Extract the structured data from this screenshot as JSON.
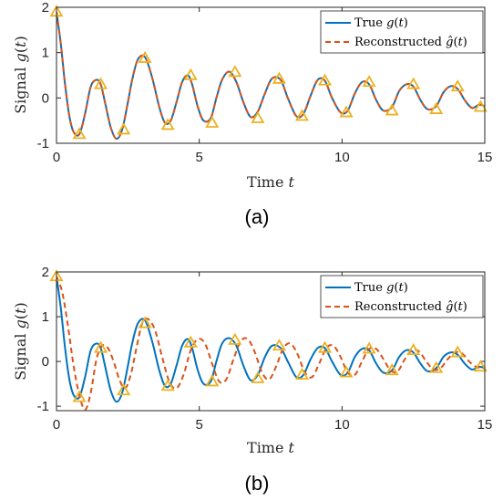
{
  "chart_data": [
    {
      "type": "line",
      "caption": "(a)",
      "xlabel": "Time t",
      "ylabel": "Signal g(t)",
      "xlim": [
        0,
        15
      ],
      "ylim": [
        -1,
        2
      ],
      "xticks": [
        "0",
        "5",
        "10",
        "15"
      ],
      "yticks": [
        "-1",
        "0",
        "1",
        "2"
      ],
      "legend_position": "top-right",
      "series": [
        {
          "name": "True g(t)",
          "color": "#0072BD",
          "style": "solid",
          "x": [
            0,
            0.15,
            0.3,
            0.45,
            0.6,
            0.8,
            1.0,
            1.2,
            1.4,
            1.55,
            1.7,
            1.9,
            2.1,
            2.3,
            2.5,
            2.65,
            2.85,
            3.1,
            3.35,
            3.6,
            3.8,
            4.0,
            4.2,
            4.4,
            4.6,
            4.75,
            4.95,
            5.15,
            5.4,
            5.6,
            5.8,
            6.05,
            6.3,
            6.55,
            6.8,
            7.05,
            7.3,
            7.55,
            7.85,
            8.1,
            8.4,
            8.65,
            8.9,
            9.15,
            9.4,
            9.65,
            9.95,
            10.2,
            10.45,
            10.7,
            10.95,
            11.2,
            11.45,
            11.75,
            12.0,
            12.25,
            12.5,
            12.75,
            13.0,
            13.3,
            13.55,
            13.8,
            14.05,
            14.3,
            14.55,
            14.8,
            15.0
          ],
          "values": [
            1.9,
            1.2,
            0.3,
            -0.4,
            -0.75,
            -0.8,
            -0.35,
            0.25,
            0.4,
            0.3,
            -0.1,
            -0.65,
            -0.9,
            -0.7,
            -0.1,
            0.4,
            0.85,
            0.9,
            0.45,
            -0.2,
            -0.55,
            -0.5,
            -0.1,
            0.35,
            0.5,
            0.3,
            -0.2,
            -0.5,
            -0.45,
            0.0,
            0.4,
            0.58,
            0.35,
            -0.1,
            -0.42,
            -0.3,
            0.1,
            0.43,
            0.4,
            0.0,
            -0.4,
            -0.35,
            0.05,
            0.4,
            0.38,
            0.0,
            -0.32,
            -0.28,
            0.1,
            0.35,
            0.3,
            -0.05,
            -0.28,
            -0.2,
            0.15,
            0.3,
            0.25,
            -0.05,
            -0.25,
            -0.18,
            0.12,
            0.26,
            0.2,
            -0.05,
            -0.22,
            -0.15,
            -0.18
          ]
        },
        {
          "name": "Reconstructed ĝ(t)",
          "color": "#D95319",
          "style": "dashed",
          "x": [
            0,
            0.15,
            0.3,
            0.45,
            0.6,
            0.8,
            1.0,
            1.2,
            1.4,
            1.55,
            1.7,
            1.9,
            2.1,
            2.3,
            2.5,
            2.65,
            2.85,
            3.1,
            3.35,
            3.6,
            3.8,
            4.0,
            4.2,
            4.4,
            4.6,
            4.75,
            4.95,
            5.15,
            5.4,
            5.6,
            5.8,
            6.05,
            6.3,
            6.55,
            6.8,
            7.05,
            7.3,
            7.55,
            7.85,
            8.1,
            8.4,
            8.65,
            8.9,
            9.15,
            9.4,
            9.65,
            9.95,
            10.2,
            10.45,
            10.7,
            10.95,
            11.2,
            11.45,
            11.75,
            12.0,
            12.25,
            12.5,
            12.75,
            13.0,
            13.3,
            13.55,
            13.8,
            14.05,
            14.3,
            14.55,
            14.8,
            15.0
          ],
          "values": [
            1.9,
            1.2,
            0.3,
            -0.4,
            -0.75,
            -0.8,
            -0.35,
            0.25,
            0.4,
            0.3,
            -0.1,
            -0.65,
            -0.9,
            -0.7,
            -0.1,
            0.4,
            0.85,
            0.9,
            0.45,
            -0.2,
            -0.55,
            -0.5,
            -0.1,
            0.35,
            0.5,
            0.3,
            -0.2,
            -0.5,
            -0.45,
            0.0,
            0.4,
            0.58,
            0.35,
            -0.1,
            -0.42,
            -0.3,
            0.1,
            0.43,
            0.4,
            0.0,
            -0.4,
            -0.35,
            0.05,
            0.4,
            0.38,
            0.0,
            -0.32,
            -0.28,
            0.1,
            0.35,
            0.3,
            -0.05,
            -0.28,
            -0.2,
            0.15,
            0.3,
            0.25,
            -0.05,
            -0.25,
            -0.18,
            0.12,
            0.26,
            0.2,
            -0.05,
            -0.22,
            -0.15,
            -0.18
          ]
        }
      ],
      "samples": {
        "color": "#EDB120",
        "marker": "triangle",
        "x": [
          0,
          0.8,
          1.55,
          2.35,
          3.1,
          3.9,
          4.7,
          5.45,
          6.25,
          7.05,
          7.8,
          8.6,
          9.4,
          10.15,
          10.95,
          11.75,
          12.5,
          13.3,
          14.05,
          14.85
        ],
        "values": [
          1.9,
          -0.8,
          0.3,
          -0.7,
          0.88,
          -0.6,
          0.5,
          -0.55,
          0.57,
          -0.45,
          0.42,
          -0.4,
          0.38,
          -0.32,
          0.35,
          -0.28,
          0.3,
          -0.25,
          0.25,
          -0.2
        ]
      }
    },
    {
      "type": "line",
      "caption": "(b)",
      "xlabel": "Time t",
      "ylabel": "Signal g(t)",
      "xlim": [
        0,
        15
      ],
      "ylim": [
        -1.1,
        2
      ],
      "xticks": [
        "0",
        "5",
        "10",
        "15"
      ],
      "yticks": [
        "-1",
        "0",
        "1",
        "2"
      ],
      "legend_position": "top-right",
      "series": [
        {
          "name": "True g(t)",
          "color": "#0072BD",
          "style": "solid",
          "x": [
            0,
            0.15,
            0.3,
            0.45,
            0.6,
            0.8,
            1.0,
            1.2,
            1.4,
            1.55,
            1.7,
            1.9,
            2.1,
            2.3,
            2.5,
            2.65,
            2.85,
            3.1,
            3.35,
            3.6,
            3.8,
            4.0,
            4.2,
            4.4,
            4.6,
            4.75,
            4.95,
            5.15,
            5.4,
            5.6,
            5.8,
            6.05,
            6.3,
            6.55,
            6.8,
            7.05,
            7.3,
            7.55,
            7.85,
            8.1,
            8.4,
            8.65,
            8.9,
            9.15,
            9.4,
            9.65,
            9.95,
            10.2,
            10.45,
            10.7,
            10.95,
            11.2,
            11.45,
            11.75,
            12.0,
            12.25,
            12.5,
            12.75,
            13.0,
            13.3,
            13.55,
            13.8,
            14.05,
            14.3,
            14.55,
            14.8,
            15.0
          ],
          "values": [
            1.9,
            1.2,
            0.3,
            -0.4,
            -0.75,
            -0.8,
            -0.35,
            0.25,
            0.4,
            0.3,
            -0.1,
            -0.65,
            -0.9,
            -0.7,
            -0.1,
            0.4,
            0.85,
            0.92,
            0.45,
            -0.2,
            -0.55,
            -0.5,
            -0.1,
            0.35,
            0.5,
            0.3,
            -0.2,
            -0.5,
            -0.45,
            0.0,
            0.4,
            0.52,
            0.35,
            -0.1,
            -0.42,
            -0.3,
            0.1,
            0.35,
            0.3,
            0.0,
            -0.35,
            -0.3,
            0.05,
            0.3,
            0.3,
            0.0,
            -0.3,
            -0.25,
            0.1,
            0.28,
            0.25,
            -0.05,
            -0.25,
            -0.2,
            0.1,
            0.25,
            0.2,
            -0.05,
            -0.22,
            -0.15,
            0.1,
            0.2,
            0.15,
            -0.05,
            -0.18,
            -0.12,
            -0.15
          ]
        },
        {
          "name": "Reconstructed ĝ(t)",
          "color": "#D95319",
          "style": "dashed",
          "x": [
            0,
            0.2,
            0.4,
            0.6,
            0.8,
            1.0,
            1.2,
            1.4,
            1.6,
            1.8,
            2.0,
            2.2,
            2.4,
            2.6,
            2.8,
            3.0,
            3.2,
            3.45,
            3.7,
            3.95,
            4.2,
            4.45,
            4.7,
            4.95,
            5.2,
            5.45,
            5.7,
            5.95,
            6.2,
            6.45,
            6.7,
            6.95,
            7.2,
            7.45,
            7.7,
            7.95,
            8.2,
            8.45,
            8.7,
            8.95,
            9.2,
            9.45,
            9.7,
            9.95,
            10.2,
            10.45,
            10.7,
            10.95,
            11.2,
            11.45,
            11.7,
            11.95,
            12.2,
            12.45,
            12.7,
            12.95,
            13.2,
            13.45,
            13.7,
            13.95,
            14.2,
            14.45,
            14.7,
            15.0
          ],
          "values": [
            1.9,
            1.55,
            0.8,
            -0.1,
            -0.75,
            -1.08,
            -0.7,
            0.05,
            0.35,
            0.3,
            0.0,
            -0.4,
            -0.6,
            -0.3,
            0.3,
            0.85,
            0.95,
            0.7,
            0.1,
            -0.45,
            -0.6,
            -0.3,
            0.25,
            0.5,
            0.4,
            -0.05,
            -0.45,
            -0.4,
            0.05,
            0.45,
            0.5,
            0.2,
            -0.25,
            -0.4,
            -0.1,
            0.3,
            0.4,
            0.15,
            -0.25,
            -0.35,
            -0.05,
            0.3,
            0.35,
            0.1,
            -0.25,
            -0.3,
            0.0,
            0.28,
            0.28,
            0.05,
            -0.2,
            -0.22,
            0.05,
            0.25,
            0.22,
            0.0,
            -0.18,
            -0.15,
            0.05,
            0.2,
            0.18,
            0.0,
            -0.12,
            -0.15
          ]
        }
      ],
      "samples": {
        "color": "#EDB120",
        "marker": "triangle",
        "x": [
          0,
          0.8,
          1.55,
          2.35,
          3.1,
          3.9,
          4.7,
          5.45,
          6.25,
          7.05,
          7.8,
          8.6,
          9.4,
          10.15,
          10.95,
          11.75,
          12.5,
          13.3,
          14.05,
          14.85
        ],
        "values": [
          1.9,
          -0.8,
          0.3,
          -0.65,
          0.85,
          -0.55,
          0.42,
          -0.45,
          0.48,
          -0.38,
          0.35,
          -0.3,
          0.3,
          -0.25,
          0.28,
          -0.2,
          0.25,
          -0.15,
          0.2,
          -0.12
        ]
      }
    }
  ]
}
